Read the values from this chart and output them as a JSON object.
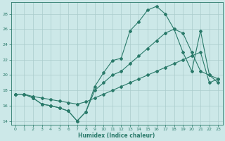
{
  "xlabel": "Humidex (Indice chaleur)",
  "xlim": [
    -0.5,
    23.5
  ],
  "ylim": [
    13.5,
    29.5
  ],
  "yticks": [
    14,
    16,
    18,
    20,
    22,
    24,
    26,
    28
  ],
  "xticks": [
    0,
    1,
    2,
    3,
    4,
    5,
    6,
    7,
    8,
    9,
    10,
    11,
    12,
    13,
    14,
    15,
    16,
    17,
    18,
    19,
    20,
    21,
    22,
    23
  ],
  "bg_color": "#cce8e8",
  "grid_color": "#aacccc",
  "line_color": "#2a7a6a",
  "line1_y": [
    17.5,
    17.5,
    17.0,
    16.2,
    16.0,
    15.7,
    15.3,
    14.0,
    15.2,
    18.5,
    20.3,
    21.9,
    22.2,
    25.8,
    27.0,
    28.5,
    29.0,
    28.0,
    26.0,
    23.0,
    20.5,
    25.8,
    20.0,
    19.0
  ],
  "line2_y": [
    17.5,
    17.5,
    17.0,
    16.2,
    16.0,
    15.7,
    15.3,
    14.0,
    15.2,
    18.0,
    19.0,
    20.0,
    20.5,
    21.5,
    22.5,
    23.5,
    24.5,
    25.5,
    26.0,
    25.5,
    23.0,
    20.5,
    20.0,
    19.5
  ],
  "line3_y": [
    17.5,
    17.5,
    17.2,
    17.0,
    16.8,
    16.6,
    16.4,
    16.2,
    16.5,
    17.0,
    17.5,
    18.0,
    18.5,
    19.0,
    19.5,
    20.0,
    20.5,
    21.0,
    21.5,
    22.0,
    22.5,
    23.0,
    19.0,
    19.5
  ],
  "marker_size": 2.0,
  "line_width": 0.8,
  "tick_fontsize": 4.5,
  "xlabel_fontsize": 5.5
}
